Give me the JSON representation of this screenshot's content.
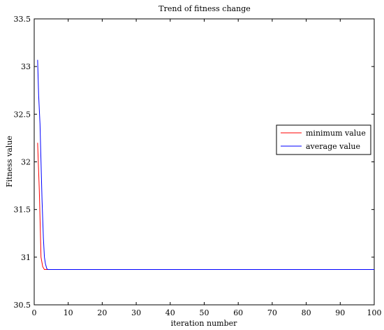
{
  "chart_data": {
    "type": "line",
    "title": "Trend of fitness change",
    "xlabel": "iteration number",
    "ylabel": "Fitness value",
    "xlim": [
      0,
      100
    ],
    "ylim": [
      30.5,
      33.5
    ],
    "xticks": [
      0,
      10,
      20,
      30,
      40,
      50,
      60,
      70,
      80,
      90,
      100
    ],
    "yticks": [
      30.5,
      31,
      31.5,
      32,
      32.5,
      33,
      33.5
    ],
    "ytick_labels": [
      "30.5",
      "31",
      "31.5",
      "32",
      "32.5",
      "33",
      "33.5"
    ],
    "grid": false,
    "legend_position": "right",
    "series": [
      {
        "name": "minimum value",
        "color": "#ff0000",
        "x": [
          1,
          1.5,
          2,
          2.5,
          3,
          3.5,
          4,
          100
        ],
        "y": [
          32.2,
          31.7,
          31.0,
          30.9,
          30.87,
          30.87,
          30.87,
          30.87
        ]
      },
      {
        "name": "average value",
        "color": "#0000ff",
        "x": [
          1,
          1.3,
          1.7,
          2,
          2.3,
          2.7,
          3,
          3.3,
          3.7,
          4,
          100
        ],
        "y": [
          33.07,
          32.7,
          32.4,
          32.0,
          31.6,
          31.2,
          31.0,
          30.93,
          30.88,
          30.87,
          30.87
        ]
      }
    ]
  }
}
